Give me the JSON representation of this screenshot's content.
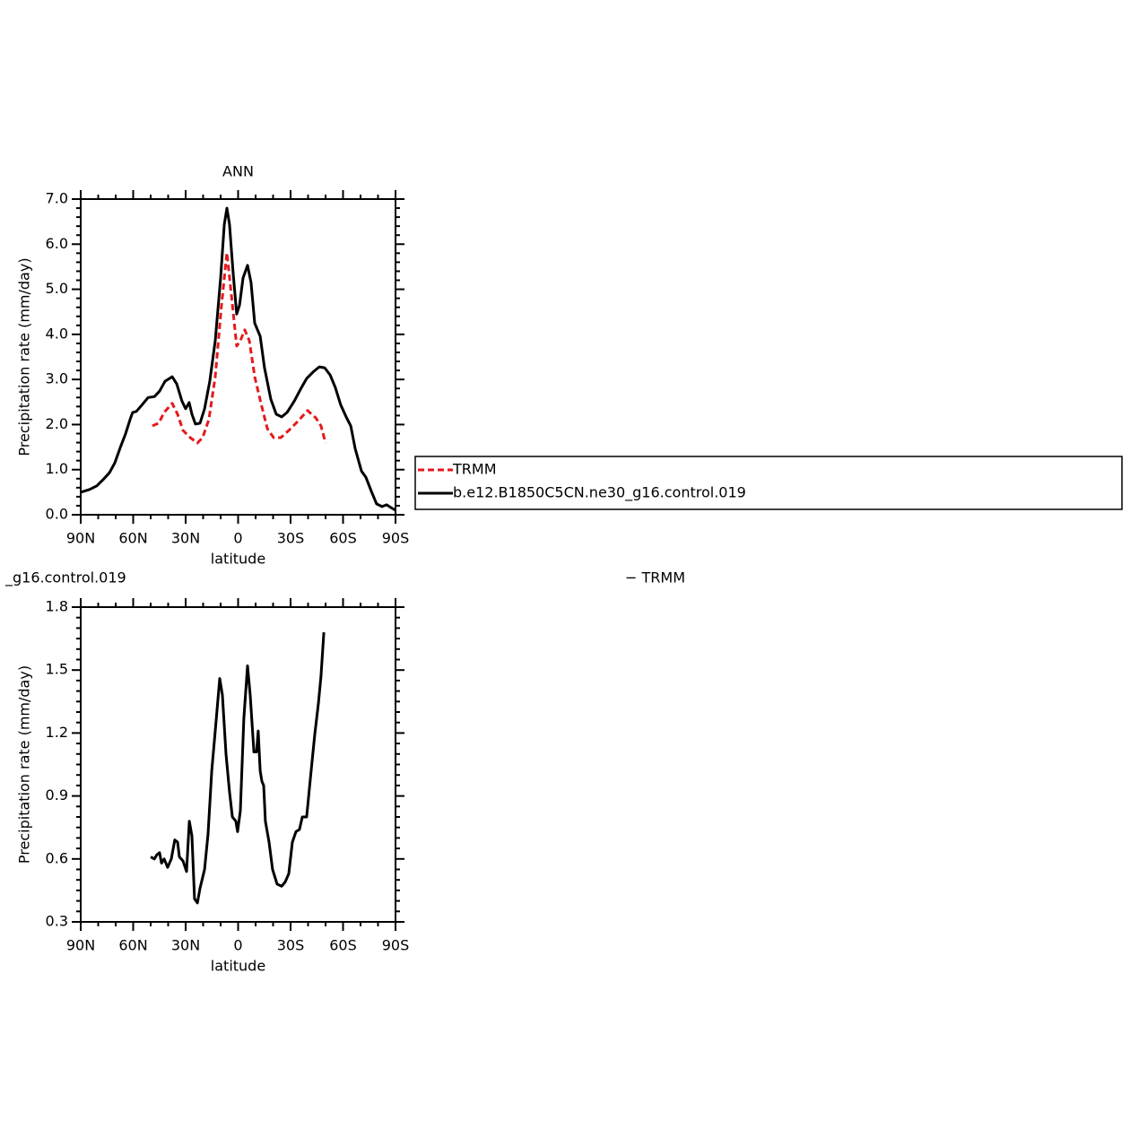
{
  "chart_data": [
    {
      "type": "line",
      "title": "ANN",
      "xlabel": "latitude",
      "ylabel": "Precipitation rate (mm/day)",
      "xlim": [
        90,
        -90
      ],
      "xticks": [
        {
          "value": 90,
          "label": "90N"
        },
        {
          "value": 60,
          "label": "60N"
        },
        {
          "value": 30,
          "label": "30N"
        },
        0,
        {
          "value": -30,
          "label": "30S"
        },
        {
          "value": -60,
          "label": "60S"
        },
        {
          "value": -90,
          "label": "90S"
        }
      ],
      "ylim": [
        0,
        7
      ],
      "yticks": [
        {
          "value": 0,
          "label": "0.0"
        },
        {
          "value": 1,
          "label": "1.0"
        },
        {
          "value": 2,
          "label": "2.0"
        },
        {
          "value": 3,
          "label": "3.0"
        },
        {
          "value": 4,
          "label": "4.0"
        },
        {
          "value": 5,
          "label": "5.0"
        },
        {
          "value": 6,
          "label": "6.0"
        },
        {
          "value": 7,
          "label": "7.0"
        }
      ],
      "legend": "right",
      "series": [
        {
          "name": "TRMM",
          "color": "#e41a1c",
          "line_style": "dashed",
          "x": [
            49.0,
            45.4,
            42.3,
            37.7,
            34.6,
            31.5,
            27.4,
            23.3,
            20.3,
            16.7,
            13.1,
            9.5,
            6.4,
            3.8,
            0.8,
            -1.3,
            -3.8,
            -6.4,
            -9.5,
            -13.1,
            -16.7,
            -20.3,
            -24.4,
            -29.0,
            -34.1,
            -39.7,
            -44.4,
            -47.4,
            -50.0
          ],
          "values": [
            1.97,
            2.03,
            2.27,
            2.47,
            2.23,
            1.87,
            1.71,
            1.59,
            1.71,
            2.11,
            3.06,
            4.65,
            5.81,
            4.85,
            3.74,
            3.86,
            4.1,
            3.86,
            3.06,
            2.47,
            1.91,
            1.71,
            1.71,
            1.87,
            2.07,
            2.31,
            2.15,
            1.97,
            1.59
          ]
        },
        {
          "name": "b.e12.B1850C5CN.ne30_g16.control.019",
          "color": "#000000",
          "line_style": "solid",
          "x": [
            90,
            84.9,
            80.8,
            77.2,
            73.6,
            70.5,
            67.4,
            64.4,
            61.8,
            60.3,
            58.2,
            55.1,
            51.5,
            47.9,
            44.9,
            41.8,
            37.7,
            35.1,
            32.1,
            30.0,
            28.0,
            26.4,
            24.4,
            21.8,
            19.2,
            16.2,
            13.1,
            10.0,
            7.9,
            6.4,
            4.9,
            2.8,
            0.8,
            -0.8,
            -2.8,
            -5.4,
            -7.4,
            -9.5,
            -12.6,
            -15.1,
            -18.7,
            -21.8,
            -24.9,
            -28.0,
            -32.1,
            -36.2,
            -39.2,
            -43.3,
            -46.4,
            -49.5,
            -52.6,
            -55.6,
            -58.7,
            -61.8,
            -64.4,
            -66.9,
            -70.5,
            -73.1,
            -76.2,
            -79.2,
            -82.3,
            -84.9,
            -87.4,
            -90
          ],
          "values": [
            0.5,
            0.56,
            0.64,
            0.78,
            0.93,
            1.15,
            1.49,
            1.79,
            2.11,
            2.27,
            2.29,
            2.43,
            2.6,
            2.62,
            2.74,
            2.96,
            3.06,
            2.9,
            2.52,
            2.35,
            2.49,
            2.23,
            2.01,
            2.03,
            2.35,
            2.96,
            3.86,
            5.25,
            6.44,
            6.8,
            6.44,
            5.35,
            4.45,
            4.65,
            5.25,
            5.53,
            5.15,
            4.25,
            3.96,
            3.26,
            2.56,
            2.23,
            2.17,
            2.27,
            2.52,
            2.82,
            3.02,
            3.18,
            3.28,
            3.26,
            3.1,
            2.82,
            2.43,
            2.17,
            1.97,
            1.47,
            0.97,
            0.83,
            0.52,
            0.24,
            0.18,
            0.22,
            0.16,
            0.1
          ]
        }
      ]
    },
    {
      "type": "line",
      "title_left": "_g16.control.019",
      "title_right": "− TRMM",
      "xlabel": "latitude",
      "ylabel": "Precipitation rate (mm/day)",
      "xlim": [
        90,
        -90
      ],
      "xticks": [
        {
          "value": 90,
          "label": "90N"
        },
        {
          "value": 60,
          "label": "60N"
        },
        {
          "value": 30,
          "label": "30N"
        },
        0,
        {
          "value": -30,
          "label": "30S"
        },
        {
          "value": -60,
          "label": "60S"
        },
        {
          "value": -90,
          "label": "90S"
        }
      ],
      "ylim": [
        0.3,
        1.8
      ],
      "yticks": [
        0.3,
        0.6,
        0.9,
        1.2,
        1.5,
        1.8
      ],
      "series": [
        {
          "color": "#000000",
          "line_style": "solid",
          "x": [
            50.0,
            47.9,
            46.4,
            44.9,
            43.8,
            42.3,
            40.3,
            38.2,
            36.2,
            34.6,
            33.6,
            31.5,
            29.5,
            27.9,
            26.4,
            24.9,
            23.3,
            21.8,
            19.2,
            17.2,
            15.1,
            13.1,
            10.5,
            9.0,
            6.9,
            4.9,
            3.3,
            1.3,
            0.3,
            -1.3,
            -3.3,
            -5.4,
            -6.9,
            -9.0,
            -10.5,
            -11.5,
            -12.6,
            -13.6,
            -14.6,
            -15.6,
            -17.7,
            -19.7,
            -22.3,
            -24.9,
            -26.9,
            -29.0,
            -31.0,
            -33.1,
            -35.1,
            -36.7,
            -39.2,
            -41.3,
            -43.8,
            -45.9,
            -47.4,
            -49.0
          ],
          "values": [
            0.61,
            0.6,
            0.62,
            0.63,
            0.58,
            0.6,
            0.56,
            0.6,
            0.69,
            0.68,
            0.61,
            0.59,
            0.54,
            0.78,
            0.71,
            0.41,
            0.39,
            0.46,
            0.55,
            0.72,
            1.02,
            1.21,
            1.46,
            1.38,
            1.1,
            0.92,
            0.8,
            0.78,
            0.73,
            0.83,
            1.27,
            1.52,
            1.38,
            1.11,
            1.11,
            1.21,
            1.02,
            0.97,
            0.95,
            0.78,
            0.68,
            0.55,
            0.48,
            0.47,
            0.49,
            0.53,
            0.68,
            0.73,
            0.74,
            0.8,
            0.8,
            0.98,
            1.19,
            1.34,
            1.47,
            1.68
          ]
        }
      ]
    }
  ]
}
